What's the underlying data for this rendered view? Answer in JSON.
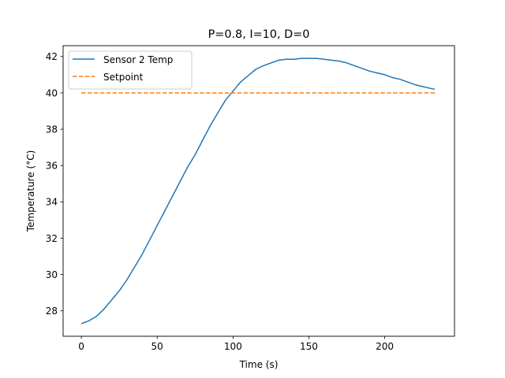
{
  "chart_data": {
    "type": "line",
    "title": "P=0.8, I=10, D=0",
    "xlabel": "Time (s)",
    "ylabel": "Temperature (°C)",
    "xlim": [
      -12,
      246
    ],
    "ylim": [
      26.6,
      42.6
    ],
    "xticks": [
      0,
      50,
      100,
      150,
      200
    ],
    "yticks": [
      28,
      30,
      32,
      34,
      36,
      38,
      40,
      42
    ],
    "grid": false,
    "legend_position": "top-left",
    "series": [
      {
        "name": "Sensor 2 Temp",
        "color": "#1f77b4",
        "style": "solid",
        "x": [
          0,
          5,
          10,
          15,
          20,
          25,
          30,
          35,
          40,
          45,
          50,
          55,
          60,
          65,
          70,
          75,
          80,
          85,
          90,
          95,
          100,
          105,
          110,
          115,
          120,
          125,
          130,
          135,
          140,
          145,
          150,
          155,
          160,
          165,
          170,
          175,
          180,
          185,
          190,
          195,
          200,
          205,
          210,
          215,
          220,
          225,
          230,
          233
        ],
        "y": [
          27.3,
          27.45,
          27.7,
          28.1,
          28.6,
          29.1,
          29.7,
          30.4,
          31.1,
          31.9,
          32.7,
          33.5,
          34.3,
          35.1,
          35.9,
          36.6,
          37.4,
          38.2,
          38.9,
          39.6,
          40.1,
          40.6,
          40.95,
          41.3,
          41.5,
          41.65,
          41.8,
          41.85,
          41.85,
          41.9,
          41.9,
          41.9,
          41.85,
          41.8,
          41.75,
          41.65,
          41.5,
          41.35,
          41.2,
          41.1,
          41.0,
          40.85,
          40.75,
          40.6,
          40.45,
          40.35,
          40.25,
          40.2
        ]
      },
      {
        "name": "Setpoint",
        "color": "#ff7f0e",
        "style": "dashed",
        "x": [
          0,
          233
        ],
        "y": [
          40,
          40
        ]
      }
    ]
  }
}
